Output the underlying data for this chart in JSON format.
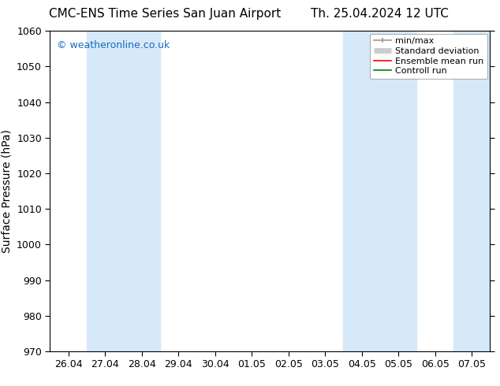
{
  "title_left": "CMC-ENS Time Series San Juan Airport",
  "title_right": "Th. 25.04.2024 12 UTC",
  "ylabel": "Surface Pressure (hPa)",
  "ylim": [
    970,
    1060
  ],
  "yticks": [
    970,
    980,
    990,
    1000,
    1010,
    1020,
    1030,
    1040,
    1050,
    1060
  ],
  "xtick_labels": [
    "26.04",
    "27.04",
    "28.04",
    "29.04",
    "30.04",
    "01.05",
    "02.05",
    "03.05",
    "04.05",
    "05.05",
    "06.05",
    "07.05"
  ],
  "shaded_bands": [
    1,
    2,
    8,
    9,
    11
  ],
  "shaded_color": "#d6e9f8",
  "bg_color": "#ffffff",
  "watermark": "© weatheronline.co.uk",
  "watermark_color": "#1a6abf",
  "title_fontsize": 11,
  "label_fontsize": 10,
  "tick_fontsize": 9,
  "legend_fontsize": 8,
  "legend_line_gray": "#999999",
  "legend_fill_gray": "#cccccc",
  "legend_red": "#ff0000",
  "legend_green": "#008000"
}
